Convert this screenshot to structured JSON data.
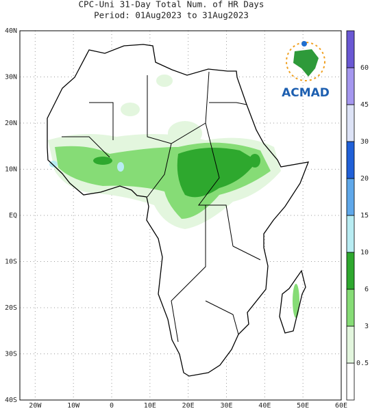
{
  "title": [
    "CPC-Uni 31-Day Total Num. of HR Days",
    "Period: 01Aug2023 to 31Aug2023"
  ],
  "logo": "ACMAD",
  "map": {
    "xlim": [
      -24,
      60
    ],
    "ylim": [
      -40,
      40
    ],
    "xticks": [
      {
        "value": -20,
        "label": "20W"
      },
      {
        "value": -10,
        "label": "10W"
      },
      0,
      {
        "value": 10,
        "label": "10E"
      },
      {
        "value": 20,
        "label": "20E"
      },
      {
        "value": 30,
        "label": "30E"
      },
      {
        "value": 40,
        "label": "40E"
      },
      {
        "value": 50,
        "label": "50E"
      },
      {
        "value": 60,
        "label": "60E"
      }
    ],
    "yticks": [
      {
        "value": 40,
        "label": "40N"
      },
      {
        "value": 30,
        "label": "30N"
      },
      {
        "value": 20,
        "label": "20N"
      },
      {
        "value": 10,
        "label": "10N"
      },
      {
        "value": 0,
        "label": "EQ"
      },
      {
        "value": -10,
        "label": "10S"
      },
      {
        "value": -20,
        "label": "20S"
      },
      {
        "value": -30,
        "label": "30S"
      },
      {
        "value": -40,
        "label": "40S"
      }
    ],
    "grid": true
  },
  "colorbar": {
    "levels": [
      0.5,
      3,
      6,
      10,
      15,
      20,
      30,
      45,
      60
    ],
    "colors": [
      "#ffffff",
      "#e3f6de",
      "#86dc76",
      "#2ea82e",
      "#b8ecf2",
      "#5fa8ea",
      "#2060d8",
      "#dde3f6",
      "#a597ef",
      "#6a58d4"
    ]
  }
}
